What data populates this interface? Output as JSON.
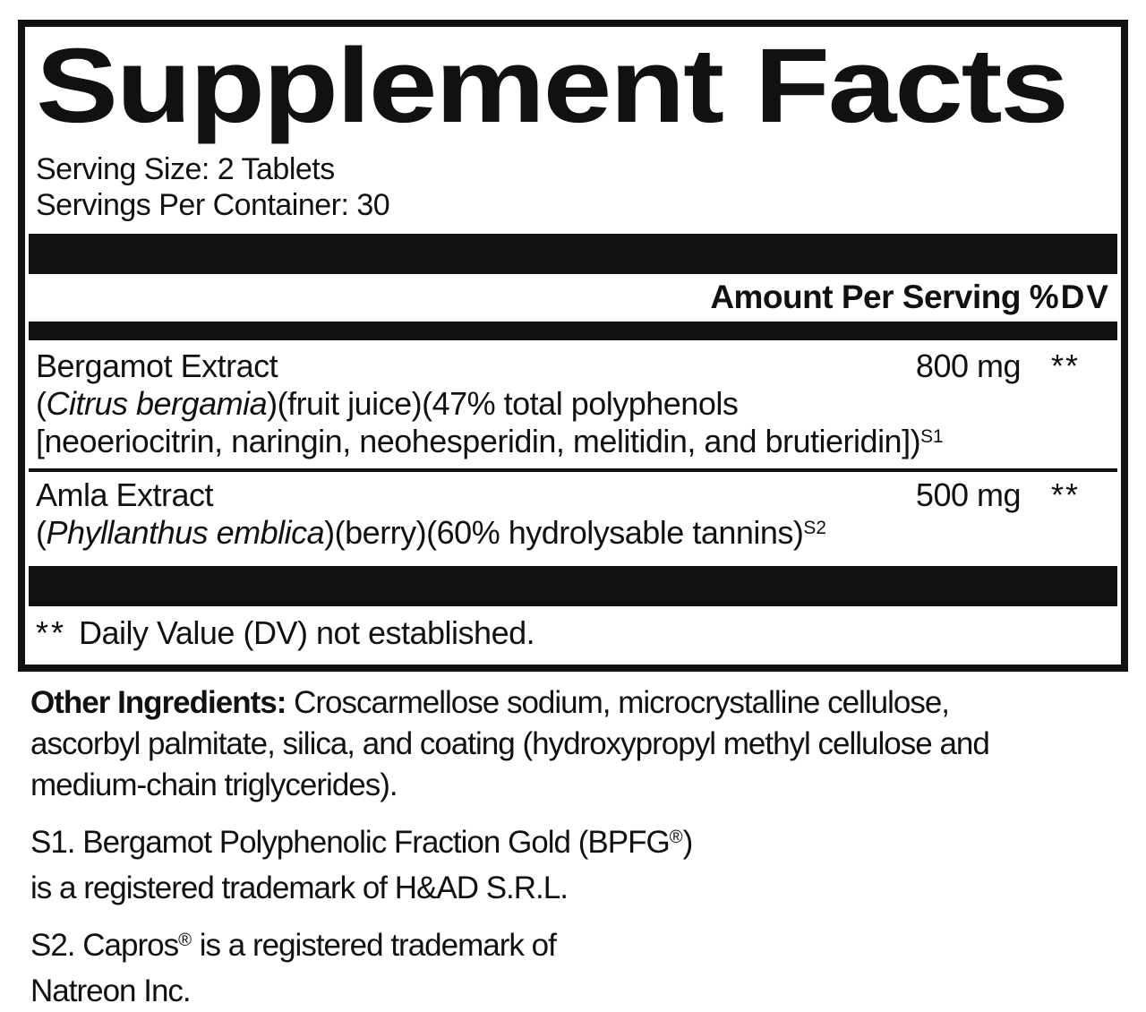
{
  "title": "Supplement Facts",
  "serving": {
    "size_line": "Serving Size: 2 Tablets",
    "per_container_line": "Servings Per Container: 30"
  },
  "table": {
    "header": {
      "amount_label": "Amount Per Serving",
      "dv_label": "%DV"
    },
    "rows": {
      "bergamot": {
        "name": "Bergamot Extract",
        "amount": "800 mg",
        "dv": "**",
        "desc1_pre": "(",
        "desc1_italic": "Citrus bergamia",
        "desc1_post": ")(fruit juice)(47% total polyphenols",
        "desc2": "[neoeriocitrin, naringin, neohesperidin, melitidin, and brutieridin])",
        "desc2_sup": "S1"
      },
      "amla": {
        "name": "Amla Extract",
        "amount": "500 mg",
        "dv": "**",
        "desc1_pre": "(",
        "desc1_italic": "Phyllanthus emblica",
        "desc1_post": ")(berry)(60% hydrolysable tannins)",
        "desc1_sup": "S2"
      }
    },
    "footnote": {
      "stars": "**",
      "text": "Daily Value (DV) not established."
    }
  },
  "other_ingredients": {
    "label": "Other Ingredients:",
    "line1_rest": " Croscarmellose sodium, microcrystalline cellulose,",
    "line2": "ascorbyl palmitate, silica, and coating (hydroxypropyl methyl cellulose and",
    "line3": "medium-chain triglycerides)."
  },
  "trademarks": {
    "s1_line1_pre": "S1. Bergamot Polyphenolic Fraction Gold (BPFG",
    "s1_line1_sup": "®",
    "s1_line1_post": ")",
    "s1_line2": "is a registered trademark of H&AD S.R.L.",
    "s2_line1_pre": "S2. Capros",
    "s2_line1_sup": "®",
    "s2_line1_post": " is a registered trademark of",
    "s2_line2": "Natreon Inc."
  },
  "colors": {
    "ink": "#111111",
    "background": "#ffffff"
  }
}
